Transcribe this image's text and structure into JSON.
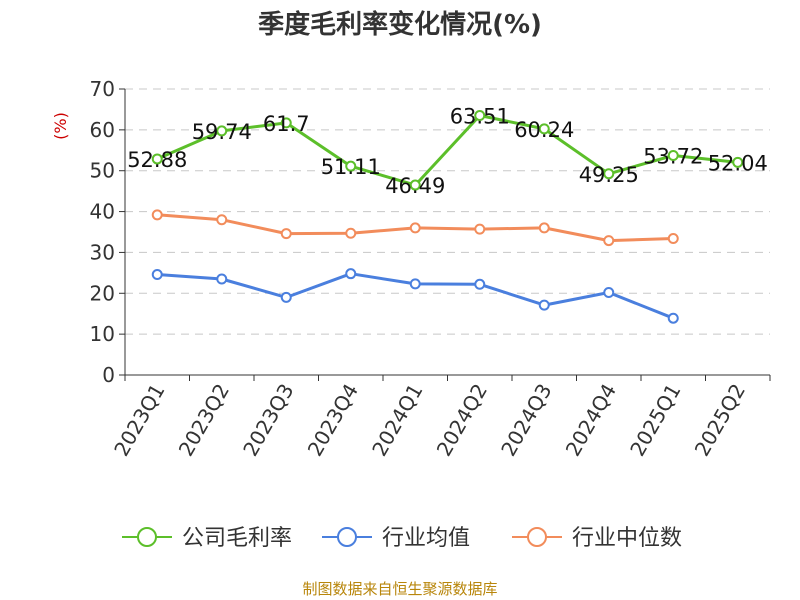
{
  "chart_data": {
    "type": "line",
    "title": "季度毛利率变化情况(%)",
    "ylabel": "(%)",
    "ylim": [
      0,
      70
    ],
    "yticks": [
      0,
      10,
      20,
      30,
      40,
      50,
      60,
      70
    ],
    "grid": true,
    "legend_position": "bottom",
    "categories": [
      "2023Q1",
      "2023Q2",
      "2023Q3",
      "2023Q4",
      "2024Q1",
      "2024Q2",
      "2024Q3",
      "2024Q4",
      "2025Q1",
      "2025Q2"
    ],
    "series": [
      {
        "name": "公司毛利率",
        "color": "#5cbf2a",
        "show_labels": true,
        "values": [
          52.88,
          59.74,
          61.7,
          51.11,
          46.49,
          63.51,
          60.24,
          49.25,
          53.72,
          52.04
        ]
      },
      {
        "name": "行业均值",
        "color": "#4a7fde",
        "show_labels": false,
        "values": [
          24.6,
          23.5,
          19.0,
          24.8,
          22.3,
          22.2,
          17.1,
          20.2,
          13.9,
          null
        ]
      },
      {
        "name": "行业中位数",
        "color": "#f28c5b",
        "show_labels": false,
        "values": [
          39.2,
          38.0,
          34.6,
          34.7,
          36.0,
          35.7,
          36.0,
          32.9,
          33.4,
          null
        ]
      }
    ]
  },
  "footer": {
    "source": "制图数据来自恒生聚源数据库"
  }
}
